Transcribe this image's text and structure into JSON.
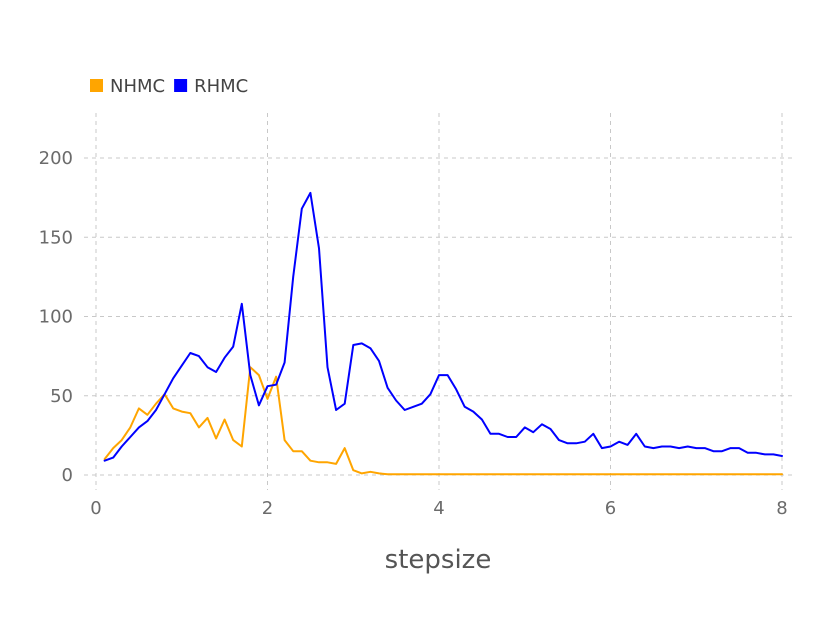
{
  "chart_data": {
    "type": "line",
    "title": "",
    "xlabel": "stepsize",
    "ylabel": "",
    "xlim": [
      0,
      8
    ],
    "ylim": [
      0,
      200
    ],
    "x_ticks": [
      0,
      2,
      4,
      6,
      8
    ],
    "y_ticks": [
      0,
      50,
      100,
      150,
      200
    ],
    "grid": true,
    "legend_position": "top-left",
    "x": [
      0.1,
      0.2,
      0.3,
      0.4,
      0.5,
      0.6,
      0.7,
      0.8,
      0.9,
      1.0,
      1.1,
      1.2,
      1.3,
      1.4,
      1.5,
      1.6,
      1.7,
      1.8,
      1.9,
      2.0,
      2.1,
      2.2,
      2.3,
      2.4,
      2.5,
      2.6,
      2.7,
      2.8,
      2.9,
      3.0,
      3.1,
      3.2,
      3.3,
      3.4,
      3.5,
      3.6,
      3.7,
      3.8,
      3.9,
      4.0,
      4.1,
      4.2,
      4.3,
      4.4,
      4.5,
      4.6,
      4.7,
      4.8,
      4.9,
      5.0,
      5.1,
      5.2,
      5.3,
      5.4,
      5.5,
      5.6,
      5.7,
      5.8,
      5.9,
      6.0,
      6.1,
      6.2,
      6.3,
      6.4,
      6.5,
      6.6,
      6.7,
      6.8,
      6.9,
      7.0,
      7.1,
      7.2,
      7.3,
      7.4,
      7.5,
      7.6,
      7.7,
      7.8,
      7.9,
      8.0
    ],
    "series": [
      {
        "name": "NHMC",
        "color": "#FFA500",
        "values": [
          10,
          17,
          22,
          30,
          42,
          38,
          45,
          51,
          42,
          40,
          39,
          30,
          36,
          23,
          35,
          22,
          18,
          68,
          63,
          48,
          62,
          22,
          15,
          15,
          9,
          8,
          8,
          7,
          17,
          3,
          1,
          2,
          1,
          0.5,
          0.5,
          0.5,
          0.5,
          0.5,
          0.5,
          0.5,
          0.5,
          0.5,
          0.5,
          0.5,
          0.5,
          0.5,
          0.5,
          0.5,
          0.5,
          0.5,
          0.5,
          0.5,
          0.5,
          0.5,
          0.5,
          0.5,
          0.5,
          0.5,
          0.5,
          0.5,
          0.5,
          0.5,
          0.5,
          0.5,
          0.5,
          0.5,
          0.5,
          0.5,
          0.5,
          0.5,
          0.5,
          0.5,
          0.5,
          0.5,
          0.5,
          0.5,
          0.5,
          0.5,
          0.5,
          0.5
        ]
      },
      {
        "name": "RHMC",
        "color": "#0000FF",
        "values": [
          9,
          11,
          18,
          24,
          30,
          34,
          41,
          51,
          61,
          69,
          77,
          75,
          68,
          65,
          74,
          81,
          108,
          63,
          44,
          56,
          57,
          71,
          125,
          168,
          178,
          143,
          68,
          41,
          45,
          82,
          83,
          80,
          72,
          55,
          47,
          41,
          43,
          45,
          51,
          63,
          63,
          54,
          43,
          40,
          35,
          26,
          26,
          24,
          24,
          30,
          27,
          32,
          29,
          22,
          20,
          20,
          21,
          26,
          17,
          18,
          21,
          19,
          26,
          18,
          17,
          18,
          18,
          17,
          18,
          17,
          17,
          15,
          15,
          17,
          17,
          14,
          14,
          13,
          13,
          12
        ]
      }
    ]
  }
}
